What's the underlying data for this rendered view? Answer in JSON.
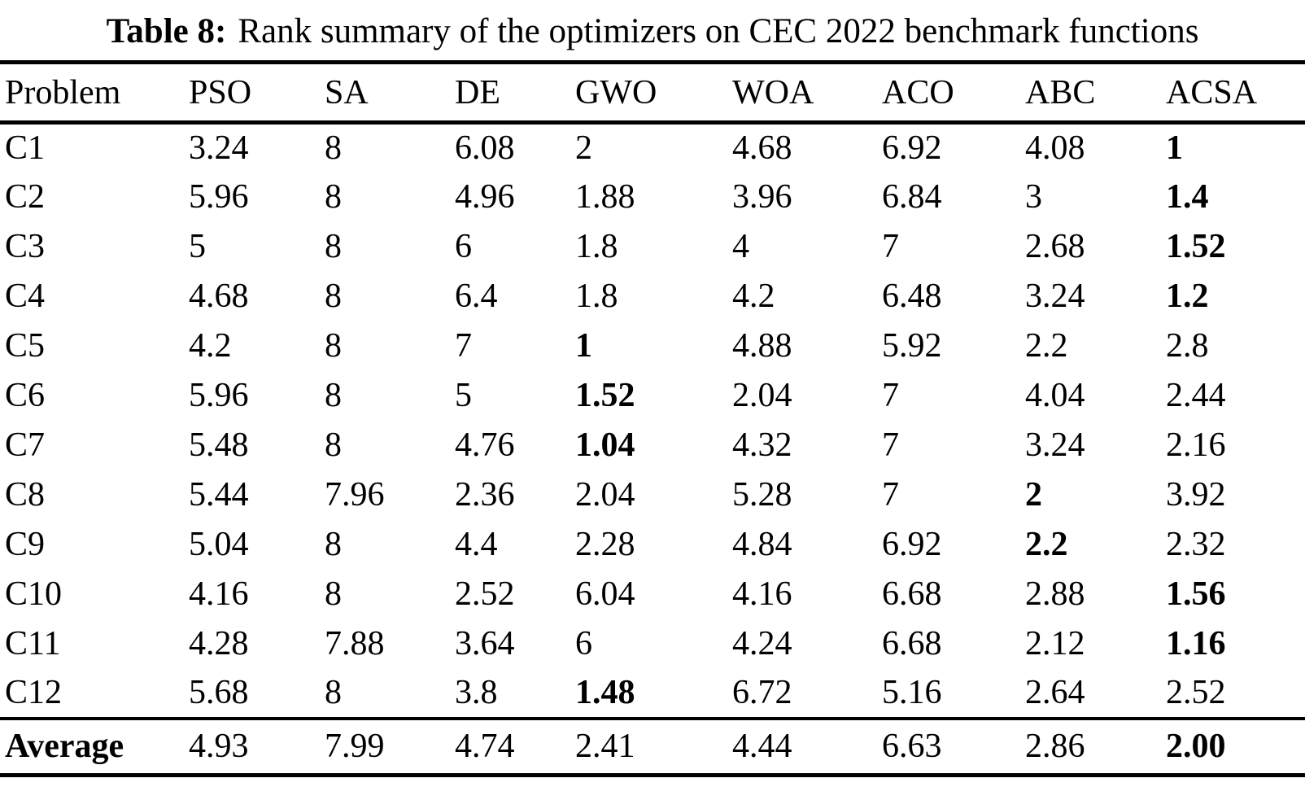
{
  "title": {
    "label": "Table 8:",
    "text": "Rank summary of the optimizers on CEC 2022 benchmark functions"
  },
  "table": {
    "columns": [
      "Problem",
      "PSO",
      "SA",
      "DE",
      "GWO",
      "WOA",
      "ACO",
      "ABC",
      "ACSA"
    ],
    "rows": [
      {
        "problem": "C1",
        "problem_bold": false,
        "values": [
          "3.24",
          "8",
          "6.08",
          "2",
          "4.68",
          "6.92",
          "4.08",
          "1"
        ],
        "bold": [
          7
        ]
      },
      {
        "problem": "C2",
        "problem_bold": false,
        "values": [
          "5.96",
          "8",
          "4.96",
          "1.88",
          "3.96",
          "6.84",
          "3",
          "1.4"
        ],
        "bold": [
          7
        ]
      },
      {
        "problem": "C3",
        "problem_bold": false,
        "values": [
          "5",
          "8",
          "6",
          "1.8",
          "4",
          "7",
          "2.68",
          "1.52"
        ],
        "bold": [
          7
        ]
      },
      {
        "problem": "C4",
        "problem_bold": false,
        "values": [
          "4.68",
          "8",
          "6.4",
          "1.8",
          "4.2",
          "6.48",
          "3.24",
          "1.2"
        ],
        "bold": [
          7
        ]
      },
      {
        "problem": "C5",
        "problem_bold": false,
        "values": [
          "4.2",
          "8",
          "7",
          "1",
          "4.88",
          "5.92",
          "2.2",
          "2.8"
        ],
        "bold": [
          3
        ]
      },
      {
        "problem": "C6",
        "problem_bold": false,
        "values": [
          "5.96",
          "8",
          "5",
          "1.52",
          "2.04",
          "7",
          "4.04",
          "2.44"
        ],
        "bold": [
          3
        ]
      },
      {
        "problem": "C7",
        "problem_bold": false,
        "values": [
          "5.48",
          "8",
          "4.76",
          "1.04",
          "4.32",
          "7",
          "3.24",
          "2.16"
        ],
        "bold": [
          3
        ]
      },
      {
        "problem": "C8",
        "problem_bold": false,
        "values": [
          "5.44",
          "7.96",
          "2.36",
          "2.04",
          "5.28",
          "7",
          "2",
          "3.92"
        ],
        "bold": [
          6
        ]
      },
      {
        "problem": "C9",
        "problem_bold": false,
        "values": [
          "5.04",
          "8",
          "4.4",
          "2.28",
          "4.84",
          "6.92",
          "2.2",
          "2.32"
        ],
        "bold": [
          6
        ]
      },
      {
        "problem": "C10",
        "problem_bold": false,
        "values": [
          "4.16",
          "8",
          "2.52",
          "6.04",
          "4.16",
          "6.68",
          "2.88",
          "1.56"
        ],
        "bold": [
          7
        ]
      },
      {
        "problem": "C11",
        "problem_bold": false,
        "values": [
          "4.28",
          "7.88",
          "3.64",
          "6",
          "4.24",
          "6.68",
          "2.12",
          "1.16"
        ],
        "bold": [
          7
        ]
      },
      {
        "problem": "C12",
        "problem_bold": false,
        "values": [
          "5.68",
          "8",
          "3.8",
          "1.48",
          "6.72",
          "5.16",
          "2.64",
          "2.52"
        ],
        "bold": [
          3
        ]
      }
    ],
    "average": {
      "problem": "Average",
      "problem_bold": true,
      "values": [
        "4.93",
        "7.99",
        "4.74",
        "2.41",
        "4.44",
        "6.63",
        "2.86",
        "2.00"
      ],
      "bold": [
        7
      ]
    }
  }
}
